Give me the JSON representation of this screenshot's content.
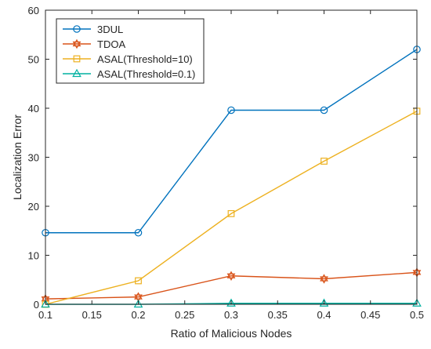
{
  "chart_data": {
    "type": "line",
    "xlabel": "Ratio of Malicious Nodes",
    "ylabel": "Localization Error",
    "xlim": [
      0.1,
      0.5
    ],
    "ylim": [
      0,
      60
    ],
    "xticks": [
      "0.1",
      "0.15",
      "0.2",
      "0.25",
      "0.3",
      "0.35",
      "0.4",
      "0.45",
      "0.5"
    ],
    "yticks": [
      "0",
      "10",
      "20",
      "30",
      "40",
      "50",
      "60"
    ],
    "x": [
      0.1,
      0.2,
      0.3,
      0.4,
      0.5
    ],
    "grid": false,
    "legend_position": "top-left",
    "series": [
      {
        "name": "3DUL",
        "values": [
          14.6,
          14.6,
          39.6,
          39.6,
          52.0
        ],
        "color": "#0072BD",
        "marker": "circle"
      },
      {
        "name": "TDOA",
        "values": [
          1.1,
          1.5,
          5.8,
          5.2,
          6.5
        ],
        "color": "#D95319",
        "marker": "hexagram"
      },
      {
        "name": "ASAL(Threshold=10)",
        "values": [
          0.0,
          4.8,
          18.5,
          29.2,
          39.4
        ],
        "color": "#EDB120",
        "marker": "square"
      },
      {
        "name": "ASAL(Threshold=0.1)",
        "values": [
          0.0,
          0.0,
          0.2,
          0.2,
          0.2
        ],
        "color": "#00B0A0",
        "marker": "triangle"
      }
    ]
  }
}
